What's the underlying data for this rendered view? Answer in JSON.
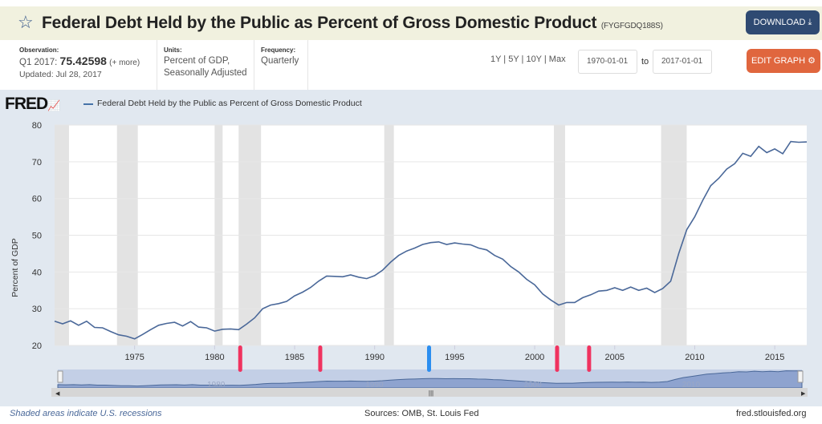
{
  "header": {
    "title": "Federal Debt Held by the Public as Percent of Gross Domestic Product",
    "series_id": "(FYGFGDQ188S)",
    "download_label": "DOWNLOAD",
    "star_icon": "star-outline-icon"
  },
  "info": {
    "observation_label": "Observation:",
    "observation_period": "Q1 2017:",
    "observation_value": "75.42598",
    "more_label": "(+ more)",
    "updated": "Updated: Jul 28, 2017",
    "units_label": "Units:",
    "units_line1": "Percent of GDP,",
    "units_line2": "Seasonally Adjusted",
    "frequency_label": "Frequency:",
    "frequency": "Quarterly"
  },
  "controls": {
    "ranges": "1Y | 5Y | 10Y | Max",
    "start_date": "1970-01-01",
    "to_label": "to",
    "end_date": "2017-01-01",
    "edit_label": "EDIT GRAPH"
  },
  "logo": {
    "text": "FRED"
  },
  "footer": {
    "note": "Shaded areas indicate U.S. recessions",
    "sources": "Sources: OMB, St. Louis Fed",
    "site": "fred.stlouisfed.org"
  },
  "colors": {
    "line": "#4a6899",
    "recession": "#e3e3e3",
    "marker_red": "#f0335f",
    "marker_blue": "#2b8ef0",
    "panel": "#e1e8f0"
  },
  "chart_data": {
    "type": "line",
    "title": "",
    "legend": "Federal Debt Held by the Public as Percent of Gross Domestic Product",
    "legend_position": "top-left",
    "xlabel": "",
    "ylabel": "Percent of GDP",
    "xlim": [
      1970,
      2017
    ],
    "ylim": [
      20,
      80
    ],
    "yticks": [
      20,
      30,
      40,
      50,
      60,
      70,
      80
    ],
    "xticks": [
      1975,
      1980,
      1985,
      1990,
      1995,
      2000,
      2005,
      2010,
      2015
    ],
    "grid": true,
    "recessions": [
      [
        1970.0,
        1970.9
      ],
      [
        1973.9,
        1975.2
      ],
      [
        1980.0,
        1980.5
      ],
      [
        1981.5,
        1982.9
      ],
      [
        1990.6,
        1991.2
      ],
      [
        2001.2,
        2001.9
      ],
      [
        2007.9,
        2009.5
      ]
    ],
    "annotation_markers": [
      {
        "x": 1981.6,
        "color": "red"
      },
      {
        "x": 1986.6,
        "color": "red"
      },
      {
        "x": 1993.4,
        "color": "blue"
      },
      {
        "x": 2001.4,
        "color": "red"
      },
      {
        "x": 2003.4,
        "color": "red"
      }
    ],
    "navigator_labels": [
      "1980",
      "1990",
      "2000",
      "2010"
    ],
    "x": [
      1970,
      1970.5,
      1971,
      1971.5,
      1972,
      1972.5,
      1973,
      1973.5,
      1974,
      1974.5,
      1975,
      1975.5,
      1976,
      1976.5,
      1977,
      1977.5,
      1978,
      1978.5,
      1979,
      1979.5,
      1980,
      1980.5,
      1981,
      1981.5,
      1982,
      1982.5,
      1983,
      1983.5,
      1984,
      1984.5,
      1985,
      1985.5,
      1986,
      1986.5,
      1987,
      1987.5,
      1988,
      1988.5,
      1989,
      1989.5,
      1990,
      1990.5,
      1991,
      1991.5,
      1992,
      1992.5,
      1993,
      1993.5,
      1994,
      1994.5,
      1995,
      1995.5,
      1996,
      1996.5,
      1997,
      1997.5,
      1998,
      1998.5,
      1999,
      1999.5,
      2000,
      2000.5,
      2001,
      2001.5,
      2002,
      2002.5,
      2003,
      2003.5,
      2004,
      2004.5,
      2005,
      2005.5,
      2006,
      2006.5,
      2007,
      2007.5,
      2008,
      2008.5,
      2009,
      2009.5,
      2010,
      2010.5,
      2011,
      2011.5,
      2012,
      2012.5,
      2013,
      2013.5,
      2014,
      2014.5,
      2015,
      2015.5,
      2016,
      2016.5,
      2017
    ],
    "values": [
      26.6,
      25.9,
      26.7,
      25.5,
      26.6,
      24.9,
      24.8,
      23.8,
      22.9,
      22.5,
      21.8,
      23.0,
      24.3,
      25.5,
      26.0,
      26.3,
      25.3,
      26.5,
      25.0,
      24.8,
      23.9,
      24.4,
      24.5,
      24.3,
      25.8,
      27.5,
      30.0,
      31.0,
      31.4,
      32.0,
      33.5,
      34.5,
      35.8,
      37.5,
      38.9,
      38.8,
      38.7,
      39.2,
      38.6,
      38.2,
      39.0,
      40.5,
      42.7,
      44.5,
      45.7,
      46.5,
      47.5,
      48.0,
      48.2,
      47.5,
      47.9,
      47.6,
      47.4,
      46.5,
      46.0,
      44.5,
      43.5,
      41.5,
      40.0,
      38.0,
      36.5,
      34.0,
      32.4,
      31.0,
      31.7,
      31.7,
      33.0,
      33.8,
      34.8,
      35.0,
      35.7,
      35.0,
      35.9,
      35.0,
      35.6,
      34.4,
      35.5,
      37.5,
      45.0,
      51.5,
      55.0,
      59.5,
      63.5,
      65.5,
      68.0,
      69.5,
      72.3,
      71.5,
      74.2,
      72.5,
      73.5,
      72.2,
      75.5,
      75.3,
      75.4
    ]
  }
}
